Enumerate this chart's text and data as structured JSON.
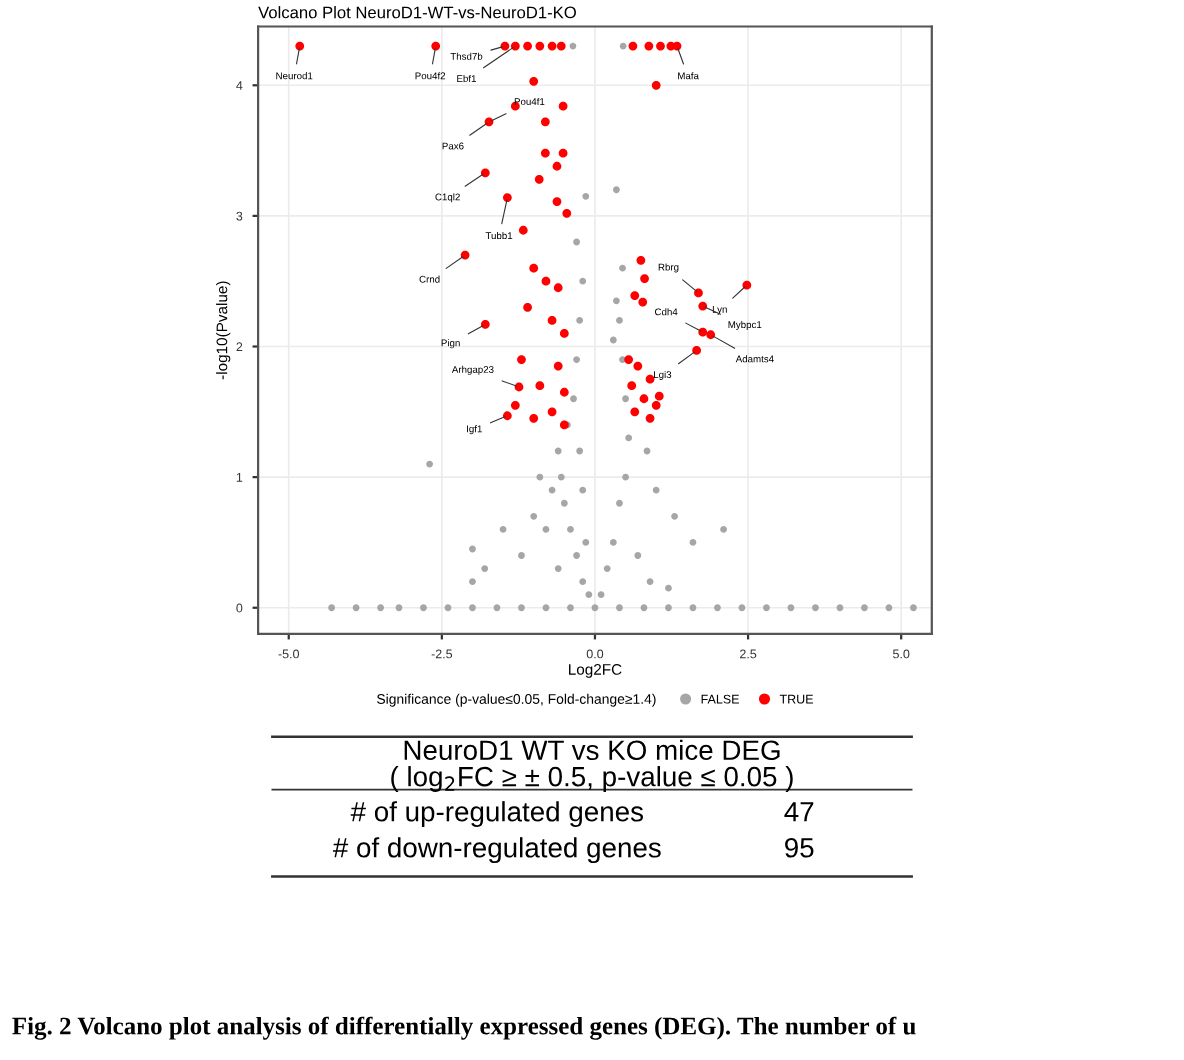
{
  "chart_data": {
    "type": "scatter",
    "title": "Volcano Plot NeuroD1-WT-vs-NeuroD1-KO",
    "xlabel": "Log2FC",
    "ylabel": "-log10(Pvalue)",
    "legend_title": "Significance (p-value≤0.05, Fold-change≥1.4)",
    "xlim": [
      -5.5,
      5.5
    ],
    "ylim": [
      -0.2,
      4.45
    ],
    "xticks": [
      {
        "value": -5,
        "label": "-5.0"
      },
      {
        "value": -2.5,
        "label": "-2.5"
      },
      {
        "value": 0,
        "label": "0.0"
      },
      {
        "value": 2.5,
        "label": "2.5"
      },
      {
        "value": 5,
        "label": "5.0"
      }
    ],
    "yticks": [
      0,
      1,
      2,
      3,
      4
    ],
    "grid": true,
    "legend": "bottom",
    "marker": "circle",
    "series": [
      {
        "name": "FALSE",
        "color": "#a6a6a6",
        "x": [
          -4.3,
          -3.9,
          -3.5,
          -3.2,
          -2.8,
          -2.4,
          -2.0,
          -1.6,
          -1.2,
          -0.8,
          -0.4,
          0,
          0.4,
          0.8,
          1.2,
          1.6,
          2.0,
          2.4,
          2.8,
          3.2,
          3.6,
          4.0,
          4.4,
          4.8,
          5.2,
          -0.1,
          -0.2,
          -0.3,
          -0.4,
          -0.5,
          -0.55,
          -0.6,
          -0.45,
          -0.35,
          -0.3,
          -0.25,
          -0.2,
          -0.3,
          -0.15,
          -0.15,
          -0.2,
          -0.25,
          -0.7,
          -0.8,
          -1.0,
          -1.2,
          -1.5,
          -1.8,
          -2.0,
          -2.7,
          -2.0,
          -0.9,
          -0.6,
          0.1,
          0.2,
          0.3,
          0.4,
          0.5,
          0.55,
          0.5,
          0.45,
          0.4,
          0.45,
          0.85,
          1.0,
          1.3,
          1.6,
          2.1,
          0.7,
          0.9,
          1.2,
          0.3,
          0.35,
          0.35,
          -0.36,
          0.46
        ],
        "values": [
          0,
          0,
          0,
          0,
          0,
          0,
          0,
          0,
          0,
          0,
          0,
          0,
          0,
          0,
          0,
          0,
          0,
          0,
          0,
          0,
          0,
          0,
          0,
          0,
          0,
          0.1,
          0.2,
          0.4,
          0.6,
          0.8,
          1.0,
          1.2,
          1.4,
          1.6,
          1.9,
          2.2,
          2.5,
          2.8,
          3.15,
          0.5,
          0.9,
          1.2,
          0.9,
          0.6,
          0.7,
          0.4,
          0.6,
          0.3,
          0.2,
          1.1,
          0.45,
          1.0,
          0.3,
          0.1,
          0.3,
          0.5,
          0.8,
          1.0,
          1.3,
          1.6,
          1.9,
          2.2,
          2.6,
          1.2,
          0.9,
          0.7,
          0.5,
          0.6,
          0.4,
          0.2,
          0.15,
          2.05,
          3.2,
          2.35,
          4.3,
          4.3
        ]
      },
      {
        "name": "TRUE",
        "color": "#ff0000",
        "x": [
          -4.82,
          -2.6,
          -1.47,
          -1.3,
          -1.1,
          -0.9,
          -0.7,
          -0.55,
          1.0,
          0.62,
          0.88,
          1.07,
          1.24,
          1.34,
          -1.0,
          -1.3,
          -0.52,
          -0.81,
          -1.73,
          -0.81,
          -0.52,
          -0.62,
          -0.91,
          -1.79,
          -1.43,
          -0.62,
          -0.46,
          -1.17,
          -2.12,
          -1.79,
          -1.0,
          -0.8,
          -0.6,
          -1.1,
          -0.7,
          -0.5,
          -1.2,
          -0.6,
          -0.9,
          -0.5,
          -1.3,
          -0.7,
          -1.0,
          -0.5,
          -1.24,
          -1.43,
          0.75,
          0.81,
          0.65,
          0.78,
          1.69,
          2.48,
          1.76,
          1.76,
          1.89,
          1.66,
          0.55,
          0.7,
          0.9,
          0.6,
          0.8,
          1.0,
          0.65,
          0.9,
          1.05
        ],
        "values": [
          4.3,
          4.3,
          4.3,
          4.3,
          4.3,
          4.3,
          4.3,
          4.3,
          4.0,
          4.3,
          4.3,
          4.3,
          4.3,
          4.3,
          4.03,
          3.84,
          3.84,
          3.72,
          3.72,
          3.48,
          3.48,
          3.38,
          3.28,
          3.33,
          3.14,
          3.11,
          3.02,
          2.89,
          2.7,
          2.17,
          2.6,
          2.5,
          2.45,
          2.3,
          2.2,
          2.1,
          1.9,
          1.85,
          1.7,
          1.65,
          1.55,
          1.5,
          1.45,
          1.4,
          1.69,
          1.47,
          2.66,
          2.52,
          2.39,
          2.34,
          2.41,
          2.47,
          2.31,
          2.11,
          2.09,
          1.97,
          1.9,
          1.85,
          1.75,
          1.7,
          1.6,
          1.55,
          1.5,
          1.45,
          1.62
        ]
      }
    ],
    "annotations": [
      {
        "text": "Neurod1",
        "x": -4.82,
        "y": 4.3
      },
      {
        "text": "Pou4f2",
        "x": -2.6,
        "y": 4.3
      },
      {
        "text": "Thsd7b",
        "x": -1.47,
        "y": 4.3
      },
      {
        "text": "Ebf1",
        "x": -1.3,
        "y": 4.3
      },
      {
        "text": "Mafa",
        "x": 1.34,
        "y": 4.3
      },
      {
        "text": "Pou4f1",
        "x": -1.73,
        "y": 3.72
      },
      {
        "text": "Pax6",
        "x": -1.73,
        "y": 3.72
      },
      {
        "text": "C1ql2",
        "x": -1.79,
        "y": 3.33
      },
      {
        "text": "Tubb1",
        "x": -1.43,
        "y": 3.14
      },
      {
        "text": "Crnd",
        "x": -2.12,
        "y": 2.7
      },
      {
        "text": "Pign",
        "x": -1.79,
        "y": 2.17
      },
      {
        "text": "Arhgap23",
        "x": -1.24,
        "y": 1.69
      },
      {
        "text": "Igf1",
        "x": -1.43,
        "y": 1.47
      },
      {
        "text": "Rbrg",
        "x": 1.69,
        "y": 2.41
      },
      {
        "text": "Lyn",
        "x": 2.48,
        "y": 2.47
      },
      {
        "text": "Mybpc1",
        "x": 1.76,
        "y": 2.31
      },
      {
        "text": "Cdh4",
        "x": 1.76,
        "y": 2.11
      },
      {
        "text": "Adamts4",
        "x": 1.89,
        "y": 2.09
      },
      {
        "text": "Lgi3",
        "x": 1.66,
        "y": 1.97
      },
      "NeuroD1 WT vs KO mice DEG",
      "( log$_{2}$FC ≥ ± 0.5, p-value ≤ 0.05 )",
      "# of up-regulated genes",
      "47",
      "# of down-regulated genes",
      "95",
      "Fig. 2 Volcano plot analysis of differentially expressed genes (DEG). The number of u"
    ]
  }
}
